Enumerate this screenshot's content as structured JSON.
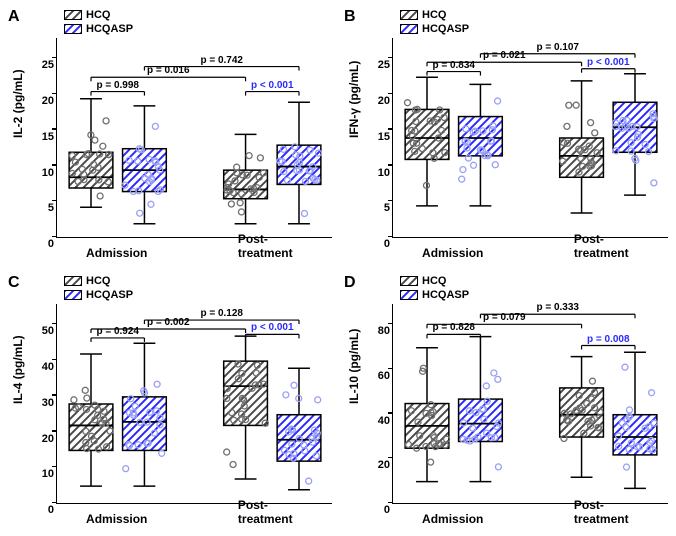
{
  "colors": {
    "hcq_stroke": "#4a4a4a",
    "hcq_fill": "#6f6f6f",
    "hcqasp_stroke": "#2a2aff",
    "hcqasp_fill": "#9aa0f6",
    "axis": "#000000",
    "background": "#ffffff"
  },
  "legend": {
    "hcq": "HCQ",
    "hcqasp": "HCQASP"
  },
  "xcats": [
    "Admission",
    "Post-treatment"
  ],
  "panels": [
    {
      "id": "A",
      "ylabel": "IL-2 (pg/mL)",
      "ylim": [
        0,
        25
      ],
      "ytick_step": 5,
      "groups": [
        {
          "series": "hcq",
          "cat": 0,
          "min": 4.3,
          "q1": 7.0,
          "med": 8.5,
          "q3": 12.0,
          "max": 19.5
        },
        {
          "series": "hcqasp",
          "cat": 0,
          "min": 2.0,
          "q1": 6.5,
          "med": 9.5,
          "q3": 12.5,
          "max": 18.5
        },
        {
          "series": "hcq",
          "cat": 1,
          "min": 2.0,
          "q1": 5.5,
          "med": 6.8,
          "q3": 9.5,
          "max": 14.5
        },
        {
          "series": "hcqasp",
          "cat": 1,
          "min": 2.0,
          "q1": 7.5,
          "med": 10.0,
          "q3": 13.0,
          "max": 19.0
        }
      ],
      "pvals": [
        {
          "from": 0,
          "to": 1,
          "y": 20.5,
          "text": "p = 0.998"
        },
        {
          "from": 0,
          "to": 2,
          "y": 22.5,
          "text": "p = 0.016"
        },
        {
          "from": 1,
          "to": 3,
          "y": 24.0,
          "text": "p = 0.742"
        },
        {
          "from": 2,
          "to": 3,
          "y": 20.5,
          "text": "p < 0.001",
          "bold": true
        }
      ]
    },
    {
      "id": "B",
      "ylabel": "IFN-γ (pg/mL)",
      "ylim": [
        0,
        25
      ],
      "ytick_step": 5,
      "groups": [
        {
          "series": "hcq",
          "cat": 0,
          "min": 4.5,
          "q1": 11.0,
          "med": 14.0,
          "q3": 18.0,
          "max": 22.5
        },
        {
          "series": "hcqasp",
          "cat": 0,
          "min": 4.5,
          "q1": 11.5,
          "med": 14.0,
          "q3": 17.0,
          "max": 21.5
        },
        {
          "series": "hcq",
          "cat": 1,
          "min": 3.5,
          "q1": 8.5,
          "med": 11.5,
          "q3": 14.0,
          "max": 22.0
        },
        {
          "series": "hcqasp",
          "cat": 1,
          "min": 6.0,
          "q1": 12.0,
          "med": 15.5,
          "q3": 19.0,
          "max": 23.0
        }
      ],
      "pvals": [
        {
          "from": 0,
          "to": 1,
          "y": 23.3,
          "text": "p = 0.834"
        },
        {
          "from": 0,
          "to": 2,
          "y": 24.6,
          "text": "p = 0.021"
        },
        {
          "from": 1,
          "to": 3,
          "y": 25.8,
          "text": "p = 0.107"
        },
        {
          "from": 2,
          "to": 3,
          "y": 23.7,
          "text": "p < 0.001",
          "bold": true
        }
      ]
    },
    {
      "id": "C",
      "ylabel": "IL-4 (pg/mL)",
      "ylim": [
        0,
        50
      ],
      "ytick_step": 10,
      "groups": [
        {
          "series": "hcq",
          "cat": 0,
          "min": 5.0,
          "q1": 15.0,
          "med": 22.0,
          "q3": 28.0,
          "max": 42.0
        },
        {
          "series": "hcqasp",
          "cat": 0,
          "min": 5.0,
          "q1": 15.0,
          "med": 23.0,
          "q3": 30.0,
          "max": 45.0
        },
        {
          "series": "hcq",
          "cat": 1,
          "min": 7.0,
          "q1": 22.0,
          "med": 33.0,
          "q3": 40.0,
          "max": 47.0
        },
        {
          "series": "hcqasp",
          "cat": 1,
          "min": 4.0,
          "q1": 12.0,
          "med": 18.0,
          "q3": 25.0,
          "max": 38.0
        }
      ],
      "pvals": [
        {
          "from": 0,
          "to": 1,
          "y": 46.5,
          "text": "p = 0.924"
        },
        {
          "from": 0,
          "to": 2,
          "y": 49.0,
          "text": "p = 0.002"
        },
        {
          "from": 1,
          "to": 3,
          "y": 51.5,
          "text": "p = 0.128"
        },
        {
          "from": 2,
          "to": 3,
          "y": 47.5,
          "text": "p < 0.001",
          "bold": true
        }
      ]
    },
    {
      "id": "D",
      "ylabel": "IL-10 (pg/mL)",
      "ylim": [
        0,
        80
      ],
      "ytick_step": 20,
      "groups": [
        {
          "series": "hcq",
          "cat": 0,
          "min": 10.0,
          "q1": 25.0,
          "med": 35.0,
          "q3": 45.0,
          "max": 70.0
        },
        {
          "series": "hcqasp",
          "cat": 0,
          "min": 10.0,
          "q1": 28.0,
          "med": 36.0,
          "q3": 47.0,
          "max": 75.0
        },
        {
          "series": "hcq",
          "cat": 1,
          "min": 12.0,
          "q1": 30.0,
          "med": 40.0,
          "q3": 52.0,
          "max": 66.0
        },
        {
          "series": "hcqasp",
          "cat": 1,
          "min": 7.0,
          "q1": 22.0,
          "med": 30.0,
          "q3": 40.0,
          "max": 68.0
        }
      ],
      "pvals": [
        {
          "from": 0,
          "to": 1,
          "y": 76.0,
          "text": "p = 0.828"
        },
        {
          "from": 0,
          "to": 2,
          "y": 80.5,
          "text": "p = 0.079"
        },
        {
          "from": 1,
          "to": 3,
          "y": 85.0,
          "text": "p = 0.333"
        },
        {
          "from": 2,
          "to": 3,
          "y": 71.0,
          "text": "p = 0.008",
          "bold": true
        }
      ]
    }
  ]
}
